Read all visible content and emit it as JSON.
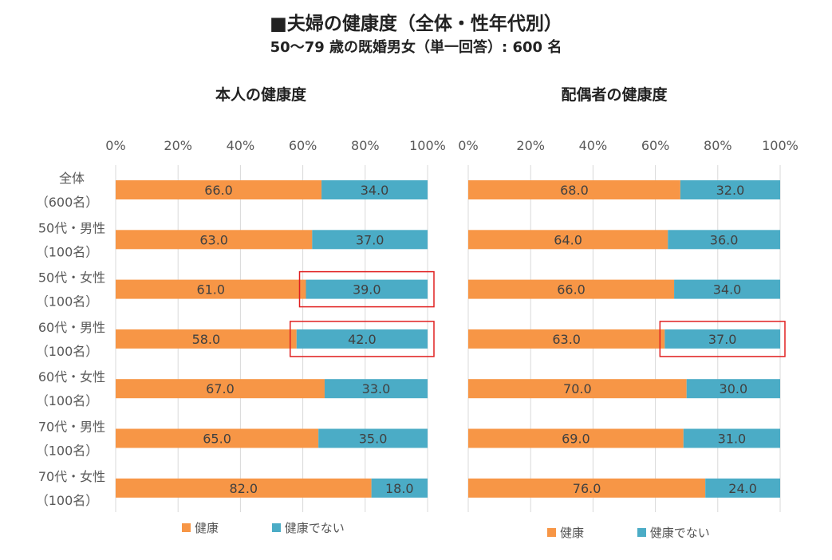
{
  "title": "■夫婦の健康度（全体・性年代別）",
  "subtitle": "50～79 歳の既婚男女（単一回答）: 600 名",
  "colors": {
    "healthy": "#F79646",
    "not_healthy": "#4BACC6",
    "highlight": "#E02020",
    "grid": "#d9d9d9",
    "text": "#595959"
  },
  "chart_data": [
    {
      "type": "bar",
      "orientation": "horizontal",
      "stacked": "100%",
      "title": "本人の健康度",
      "categories": [
        [
          "全体",
          "（600名）"
        ],
        [
          "50代・男性",
          "（100名）"
        ],
        [
          "50代・女性",
          "（100名）"
        ],
        [
          "60代・男性",
          "（100名）"
        ],
        [
          "60代・女性",
          "（100名）"
        ],
        [
          "70代・男性",
          "（100名）"
        ],
        [
          "70代・女性",
          "（100名）"
        ]
      ],
      "series": [
        {
          "name": "健康",
          "color": "#F79646",
          "values": [
            66.0,
            63.0,
            61.0,
            58.0,
            67.0,
            65.0,
            82.0
          ]
        },
        {
          "name": "健康でない",
          "color": "#4BACC6",
          "values": [
            34.0,
            37.0,
            39.0,
            42.0,
            33.0,
            35.0,
            18.0
          ]
        }
      ],
      "xticks": [
        "0%",
        "20%",
        "40%",
        "60%",
        "80%",
        "100%"
      ],
      "xlim": [
        0,
        100
      ],
      "grid": true,
      "legend_position": "bottom",
      "highlighted": [
        {
          "category_index": 2,
          "series": "健康でない"
        },
        {
          "category_index": 3,
          "series": "健康でない"
        }
      ]
    },
    {
      "type": "bar",
      "orientation": "horizontal",
      "stacked": "100%",
      "title": "配偶者の健康度",
      "categories": [
        [
          "全体",
          "（600名）"
        ],
        [
          "50代・男性",
          "（100名）"
        ],
        [
          "50代・女性",
          "（100名）"
        ],
        [
          "60代・男性",
          "（100名）"
        ],
        [
          "60代・女性",
          "（100名）"
        ],
        [
          "70代・男性",
          "（100名）"
        ],
        [
          "70代・女性",
          "（100名）"
        ]
      ],
      "series": [
        {
          "name": "健康",
          "color": "#F79646",
          "values": [
            68.0,
            64.0,
            66.0,
            63.0,
            70.0,
            69.0,
            76.0
          ]
        },
        {
          "name": "健康でない",
          "color": "#4BACC6",
          "values": [
            32.0,
            36.0,
            34.0,
            37.0,
            30.0,
            31.0,
            24.0
          ]
        }
      ],
      "xticks": [
        "0%",
        "20%",
        "40%",
        "60%",
        "80%",
        "100%"
      ],
      "xlim": [
        0,
        100
      ],
      "grid": true,
      "legend_position": "bottom",
      "highlighted": [
        {
          "category_index": 3,
          "series": "健康でない"
        }
      ]
    }
  ]
}
